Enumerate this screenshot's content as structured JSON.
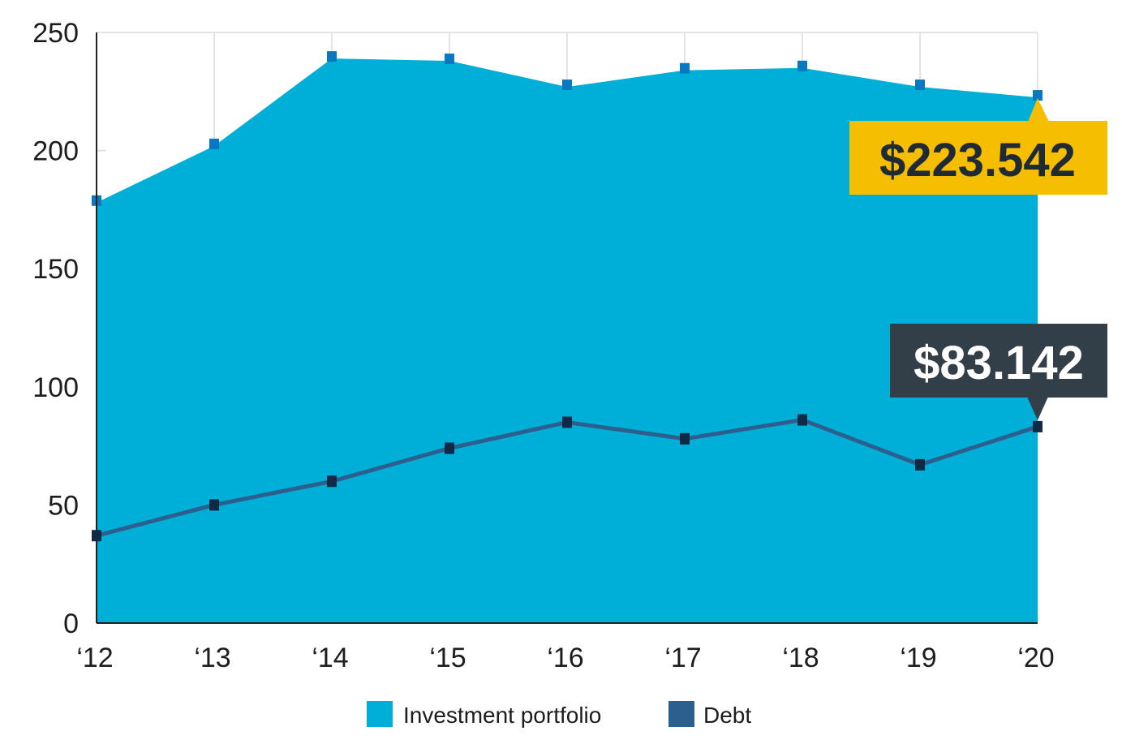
{
  "chart_data": {
    "type": "area",
    "title": "",
    "xlabel": "",
    "ylabel": "",
    "categories": [
      "‘12",
      "‘13",
      "‘14",
      "‘15",
      "‘16",
      "‘17",
      "‘18",
      "‘19",
      "‘20"
    ],
    "ylim": [
      0,
      250
    ],
    "yticks": [
      "0",
      "50",
      "100",
      "150",
      "200",
      "250"
    ],
    "ytick_values": [
      0,
      50,
      100,
      150,
      200,
      250
    ],
    "grid": "vertical and top line",
    "legend_position": "bottom-center",
    "series": [
      {
        "name": "Investment portfolio",
        "kind": "area",
        "color": "#00AFD7",
        "marker_color": "#0A78BE",
        "values": [
          179,
          203,
          240,
          239,
          228,
          235,
          236,
          228,
          223.542
        ]
      },
      {
        "name": "Debt",
        "kind": "line",
        "color": "#2C5F8E",
        "marker_color": "#0E2A47",
        "values": [
          37,
          50,
          60,
          74,
          85,
          78,
          86,
          67,
          83.142
        ]
      }
    ],
    "annotations": [
      {
        "text": "$223.542",
        "series": "Investment portfolio",
        "category": "‘20",
        "bg": "#F5BE00",
        "fg": "#1F2A33"
      },
      {
        "text": "$83.142",
        "series": "Debt",
        "category": "‘20",
        "bg": "#333F48",
        "fg": "#FFFFFF"
      }
    ]
  }
}
